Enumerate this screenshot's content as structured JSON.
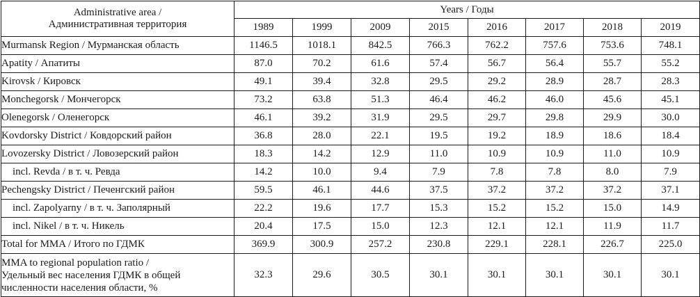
{
  "header": {
    "area_label": "Administrative area /",
    "area_label_ru": "Административная территория",
    "years_label": "Years / Годы"
  },
  "years": [
    "1989",
    "1999",
    "2009",
    "2015",
    "2016",
    "2017",
    "2018",
    "2019"
  ],
  "rows": [
    {
      "label": "Murmansk Region / Мурманская область",
      "values": [
        "1146.5",
        "1018.1",
        "842.5",
        "766.3",
        "762.2",
        "757.6",
        "753.6",
        "748.1"
      ]
    },
    {
      "label": "Apatity / Апатиты",
      "values": [
        "87.0",
        "70.2",
        "61.6",
        "57.4",
        "56.7",
        "56.4",
        "55.7",
        "55.2"
      ]
    },
    {
      "label": "Kirovsk / Кировск",
      "values": [
        "49.1",
        "39.4",
        "32.8",
        "29.5",
        "29.2",
        "28.9",
        "28.7",
        "28.3"
      ]
    },
    {
      "label": "Monchegorsk / Мончегорск",
      "values": [
        "73.2",
        "63.8",
        "51.3",
        "46.4",
        "46.2",
        "46.0",
        "45.6",
        "45.1"
      ]
    },
    {
      "label": "Olenegorsk / Оленегорск",
      "values": [
        "46.1",
        "39.2",
        "31.9",
        "29.5",
        "29.7",
        "29.8",
        "29.9",
        "30.0"
      ]
    },
    {
      "label": "Kovdorsky District / Ковдорский район",
      "values": [
        "36.8",
        "28.0",
        "22.1",
        "19.5",
        "19.2",
        "18.9",
        "18.6",
        "18.4"
      ]
    },
    {
      "label": "Lovozersky District / Ловозерский район",
      "values": [
        "18.3",
        "14.2",
        "12.9",
        "11.0",
        "10.9",
        "10.9",
        "11.0",
        "10.9"
      ]
    },
    {
      "label": "incl. Revda / в т. ч. Ревда",
      "values": [
        "14.2",
        "10.0",
        "9.4",
        "7.9",
        "7.8",
        "7.8",
        "8.0",
        "7.9"
      ]
    },
    {
      "label": "Pechengsky District / Печенгский район",
      "values": [
        "59.5",
        "46.1",
        "44.6",
        "37.5",
        "37.2",
        "37.2",
        "37.2",
        "37.1"
      ]
    },
    {
      "label": "incl. Zapolyarny / в т. ч. Заполярный",
      "values": [
        "22.2",
        "19.6",
        "17.7",
        "15.3",
        "15.2",
        "15.2",
        "15.0",
        "14.9"
      ]
    },
    {
      "label": "incl. Nikel / в т. ч. Никель",
      "values": [
        "20.4",
        "17.5",
        "15.0",
        "12.3",
        "12.1",
        "12.1",
        "11.9",
        "11.7"
      ]
    },
    {
      "label": "Total for MMA / Итого по ГДМК",
      "values": [
        "369.9",
        "300.9",
        "257.2",
        "230.8",
        "229.1",
        "228.1",
        "226.7",
        "225.0"
      ]
    }
  ],
  "ratio_row": {
    "line1": "MMA to regional population ratio /",
    "line2": "Удельный вес населения ГДМК в общей",
    "line3": "численности населения области, %",
    "values": [
      "32.3",
      "29.6",
      "30.5",
      "30.1",
      "30.1",
      "30.1",
      "30.1",
      "30.1"
    ]
  }
}
